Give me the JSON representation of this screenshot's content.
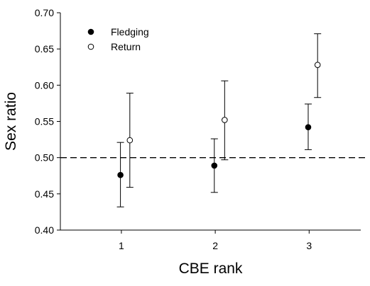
{
  "chart_data": {
    "type": "scatter",
    "xlabel": "CBE rank",
    "ylabel": "Sex ratio",
    "categories": [
      "1",
      "2",
      "3"
    ],
    "x_ticks": [
      1,
      2,
      3
    ],
    "xlim": [
      0.35,
      3.55
    ],
    "ylim": [
      0.4,
      0.7
    ],
    "y_ticks": [
      "0.40",
      "0.45",
      "0.50",
      "0.55",
      "0.60",
      "0.65",
      "0.70"
    ],
    "reference_line": {
      "y": 0.5,
      "style": "dashed"
    },
    "legend_position": "top-left",
    "grid": false,
    "series": [
      {
        "name": "Fledging",
        "marker": "filled-circle",
        "color": "#000000",
        "x": [
          0.99,
          1.99,
          2.99
        ],
        "y": [
          0.476,
          0.489,
          0.542
        ],
        "err_low": [
          0.432,
          0.452,
          0.511
        ],
        "err_high": [
          0.521,
          0.526,
          0.574
        ]
      },
      {
        "name": "Return",
        "marker": "open-circle",
        "color": "#000000",
        "x": [
          1.09,
          2.1,
          3.09
        ],
        "y": [
          0.524,
          0.552,
          0.628
        ],
        "err_low": [
          0.459,
          0.497,
          0.583
        ],
        "err_high": [
          0.589,
          0.606,
          0.671
        ]
      }
    ]
  }
}
